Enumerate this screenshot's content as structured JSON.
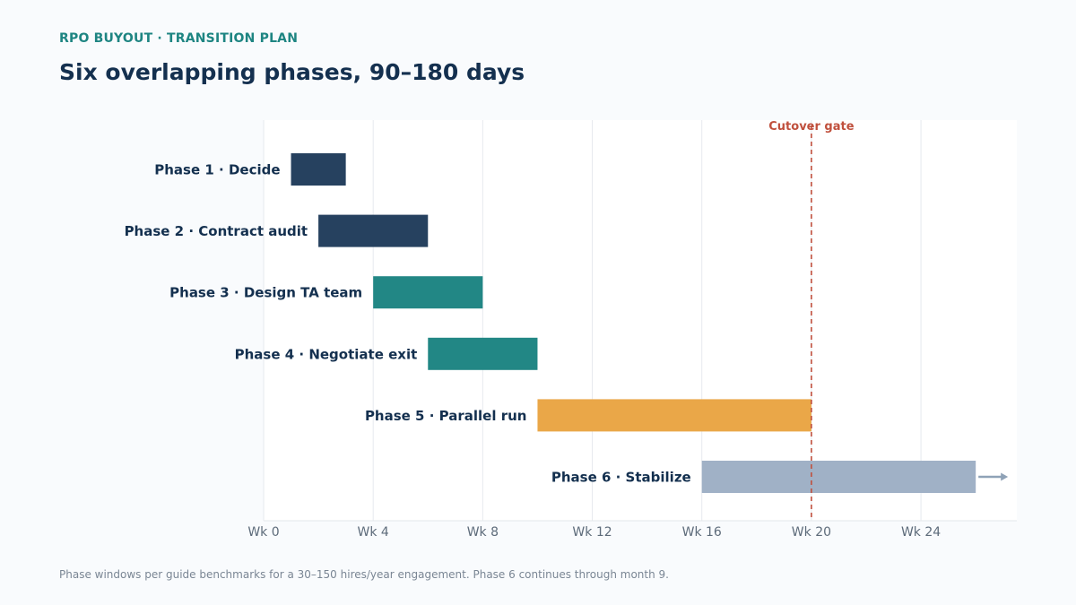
{
  "header": {
    "eyebrow": "RPO BUYOUT · TRANSITION PLAN",
    "title": "Six overlapping phases, 90–180 days"
  },
  "footnote": "Phase windows per guide benchmarks for a 30–150 hires/year engagement. Phase 6 continues through month 9.",
  "chart_data": {
    "type": "gantt",
    "x_ticks": [
      {
        "value": 0,
        "label": "Wk 0"
      },
      {
        "value": 4,
        "label": "Wk 4"
      },
      {
        "value": 8,
        "label": "Wk 8"
      },
      {
        "value": 12,
        "label": "Wk 12"
      },
      {
        "value": 16,
        "label": "Wk 16"
      },
      {
        "value": 20,
        "label": "Wk 20"
      },
      {
        "value": 24,
        "label": "Wk 24"
      }
    ],
    "xlim": [
      0,
      27.5
    ],
    "grid": "vertical",
    "tasks": [
      {
        "label": "Phase 1 · Decide",
        "start": 1,
        "end": 3,
        "color": "#26415f"
      },
      {
        "label": "Phase 2 · Contract audit",
        "start": 2,
        "end": 6,
        "color": "#26415f"
      },
      {
        "label": "Phase 3 · Design TA team",
        "start": 4,
        "end": 8,
        "color": "#228785"
      },
      {
        "label": "Phase 4 · Negotiate exit",
        "start": 6,
        "end": 10,
        "color": "#228785"
      },
      {
        "label": "Phase 5 · Parallel run",
        "start": 10,
        "end": 20,
        "color": "#eaa748"
      },
      {
        "label": "Phase 6 · Stabilize",
        "start": 16,
        "end": 26,
        "color": "#a0b1c6",
        "continues": true
      }
    ],
    "marker": {
      "label": "Cutover gate",
      "value": 20,
      "color": "#c0503d"
    }
  }
}
